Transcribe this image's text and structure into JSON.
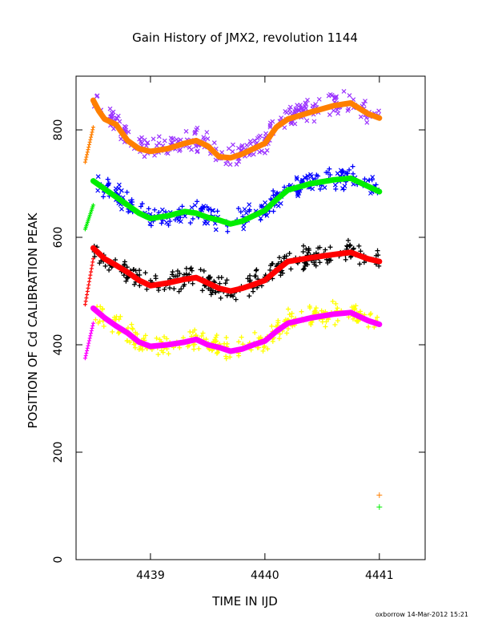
{
  "chart_data": {
    "type": "scatter",
    "title": "Gain History of JMX2, revolution 1144",
    "xlabel": "TIME IN IJD",
    "ylabel": "POSITION OF Cd CALIBRATION PEAK",
    "xlim": [
      4438.35,
      4441.4
    ],
    "ylim": [
      0,
      900
    ],
    "xticks": [
      "4439",
      "4440",
      "4441"
    ],
    "yticks": [
      "0",
      "200",
      "400",
      "600",
      "800"
    ],
    "footer": "oxborrow 14-Mar-2012 15:21",
    "colors": {
      "orange": "#ff7f00",
      "purple": "#9a32ff",
      "green": "#00ee00",
      "blue": "#0000ff",
      "red": "#ff0000",
      "black": "#000000",
      "magenta": "#ff00ff",
      "yellow": "#ffff00"
    },
    "series": [
      {
        "color": "orange",
        "style": "line",
        "rise": [
          [
            4438.43,
            740
          ],
          [
            4438.5,
            805
          ]
        ],
        "x": [
          4438.5,
          4438.55,
          4438.6,
          4438.7,
          4438.8,
          4438.9,
          4439.0,
          4439.15,
          4439.3,
          4439.4,
          4439.5,
          4439.6,
          4439.7,
          4439.8,
          4439.9,
          4440.0,
          4440.1,
          4440.2,
          4440.4,
          4440.6,
          4440.75,
          4440.9,
          4441.0
        ],
        "y": [
          855,
          835,
          820,
          810,
          780,
          765,
          760,
          765,
          775,
          780,
          770,
          750,
          748,
          755,
          765,
          775,
          805,
          820,
          833,
          845,
          850,
          830,
          822
        ]
      },
      {
        "color": "purple",
        "style": "scatter",
        "x": [
          4438.5,
          4438.55,
          4438.6,
          4438.7,
          4438.8,
          4438.9,
          4439.0,
          4439.15,
          4439.3,
          4439.4,
          4439.5,
          4439.6,
          4439.7,
          4439.8,
          4439.9,
          4440.0,
          4440.1,
          4440.2,
          4440.4,
          4440.6,
          4440.75,
          4440.9,
          4441.0
        ],
        "y": [
          855,
          845,
          830,
          815,
          790,
          770,
          762,
          768,
          780,
          783,
          772,
          752,
          750,
          757,
          767,
          778,
          810,
          822,
          836,
          846,
          852,
          834,
          826
        ]
      },
      {
        "color": "green",
        "style": "line",
        "rise": [
          [
            4438.43,
            615
          ],
          [
            4438.5,
            660
          ]
        ],
        "x": [
          4438.5,
          4438.6,
          4438.7,
          4438.8,
          4438.9,
          4439.0,
          4439.15,
          4439.3,
          4439.4,
          4439.5,
          4439.6,
          4439.7,
          4439.8,
          4439.9,
          4440.0,
          4440.1,
          4440.2,
          4440.4,
          4440.6,
          4440.75,
          4440.9,
          4441.0
        ],
        "y": [
          705,
          690,
          675,
          660,
          645,
          635,
          640,
          648,
          645,
          637,
          632,
          625,
          630,
          640,
          650,
          670,
          688,
          700,
          707,
          710,
          695,
          685
        ]
      },
      {
        "color": "blue",
        "style": "scatter",
        "x": [
          4438.5,
          4438.6,
          4438.7,
          4438.8,
          4438.9,
          4439.0,
          4439.15,
          4439.3,
          4439.4,
          4439.5,
          4439.6,
          4439.7,
          4439.8,
          4439.9,
          4440.0,
          4440.1,
          4440.2,
          4440.4,
          4440.6,
          4440.75,
          4440.9,
          4441.0
        ],
        "y": [
          705,
          693,
          678,
          662,
          648,
          637,
          642,
          650,
          647,
          639,
          634,
          627,
          632,
          642,
          652,
          672,
          690,
          702,
          709,
          712,
          697,
          687
        ]
      },
      {
        "color": "red",
        "style": "line",
        "rise": [
          [
            4438.43,
            475
          ],
          [
            4438.5,
            560
          ]
        ],
        "x": [
          4438.5,
          4438.6,
          4438.7,
          4438.8,
          4438.9,
          4439.0,
          4439.15,
          4439.3,
          4439.4,
          4439.5,
          4439.6,
          4439.7,
          4439.8,
          4439.9,
          4440.0,
          4440.1,
          4440.2,
          4440.4,
          4440.6,
          4440.75,
          4440.9,
          4441.0
        ],
        "y": [
          580,
          560,
          548,
          535,
          520,
          510,
          515,
          522,
          525,
          515,
          505,
          500,
          505,
          512,
          520,
          538,
          555,
          562,
          568,
          572,
          560,
          555
        ]
      },
      {
        "color": "black",
        "style": "scatter",
        "x": [
          4438.5,
          4438.6,
          4438.7,
          4438.8,
          4438.9,
          4439.0,
          4439.15,
          4439.3,
          4439.4,
          4439.5,
          4439.6,
          4439.7,
          4439.8,
          4439.9,
          4440.0,
          4440.1,
          4440.2,
          4440.4,
          4440.6,
          4440.75,
          4440.9,
          4441.0
        ],
        "y": [
          580,
          562,
          550,
          537,
          522,
          512,
          517,
          524,
          527,
          517,
          507,
          502,
          507,
          514,
          522,
          540,
          557,
          564,
          570,
          574,
          562,
          557
        ]
      },
      {
        "color": "magenta",
        "style": "line",
        "rise": [
          [
            4438.43,
            375
          ],
          [
            4438.5,
            440
          ]
        ],
        "x": [
          4438.5,
          4438.6,
          4438.7,
          4438.8,
          4438.9,
          4439.0,
          4439.15,
          4439.3,
          4439.4,
          4439.5,
          4439.6,
          4439.7,
          4439.8,
          4439.9,
          4440.0,
          4440.1,
          4440.2,
          4440.4,
          4440.6,
          4440.75,
          4440.9,
          4441.0
        ],
        "y": [
          468,
          450,
          435,
          422,
          405,
          397,
          400,
          405,
          410,
          400,
          395,
          388,
          392,
          400,
          407,
          425,
          440,
          450,
          457,
          460,
          445,
          438
        ]
      },
      {
        "color": "yellow",
        "style": "scatter",
        "x": [
          4438.5,
          4438.6,
          4438.7,
          4438.8,
          4438.9,
          4439.0,
          4439.15,
          4439.3,
          4439.4,
          4439.5,
          4439.6,
          4439.7,
          4439.8,
          4439.9,
          4440.0,
          4440.1,
          4440.2,
          4440.4,
          4440.6,
          4440.75,
          4440.9,
          4441.0
        ],
        "y": [
          468,
          452,
          437,
          424,
          407,
          399,
          402,
          407,
          412,
          402,
          397,
          390,
          394,
          402,
          409,
          427,
          442,
          452,
          459,
          462,
          447,
          440
        ]
      },
      {
        "color": "orange",
        "style": "marker",
        "x": [
          4441.0
        ],
        "y": [
          120
        ]
      },
      {
        "color": "green",
        "style": "marker",
        "x": [
          4441.0
        ],
        "y": [
          98
        ]
      }
    ]
  }
}
